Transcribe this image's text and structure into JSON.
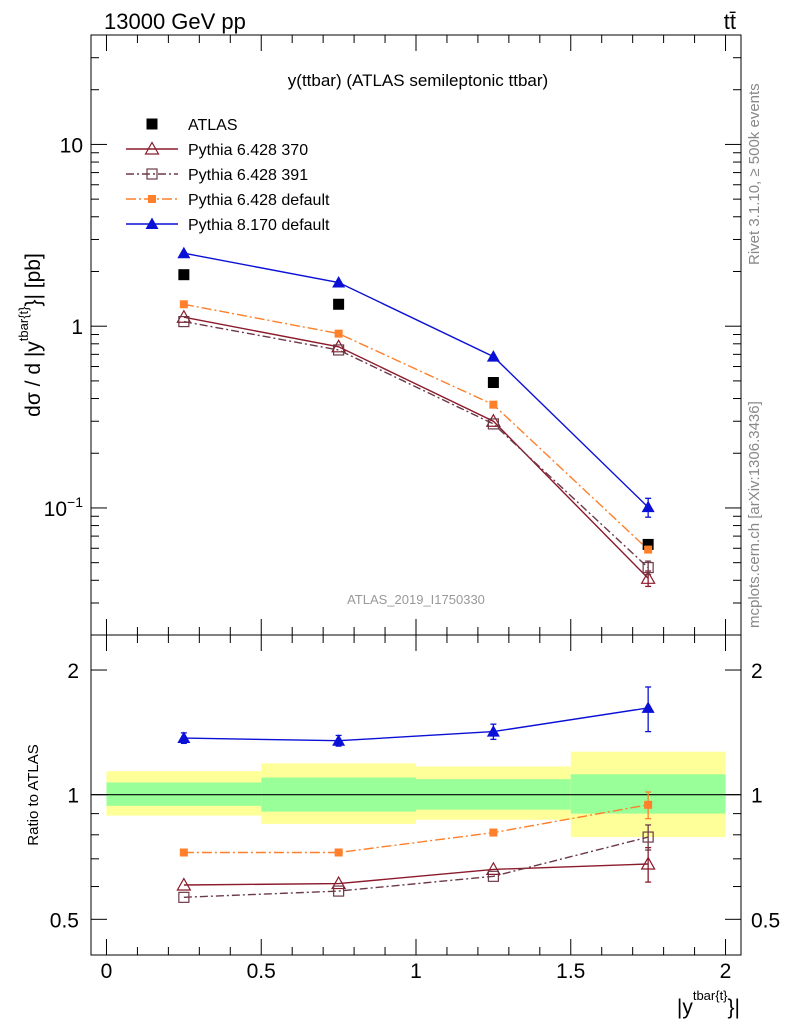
{
  "header": {
    "left": "13000 GeV pp",
    "right": "tt̄"
  },
  "side_labels": {
    "rivet": "Rivet 3.1.10, ≥ 500k events",
    "mcplots": "mcplots.cern.ch [arXiv:1306.3436]"
  },
  "chart_data": [
    {
      "type": "scatter",
      "panel": "main",
      "title": "y(ttbar) (ATLAS semileptonic ttbar)",
      "watermark": "ATLAS_2019_I1750330",
      "ylabel_parts": [
        "dσ / d |y",
        "tbar{t}",
        "}| [pb]"
      ],
      "yscale": "log",
      "ylim": [
        0.02,
        40
      ],
      "xlim": [
        -0.05,
        2.05
      ],
      "ytick_labels": {
        "big": [
          "10",
          "1"
        ],
        "exponent_tick": {
          "base": "10",
          "exp": "−1"
        }
      },
      "legend_position": "top-left",
      "x": [
        0.25,
        0.75,
        1.25,
        1.75
      ],
      "series": [
        {
          "name": "ATLAS",
          "color": "#000000",
          "marker": "square",
          "line": "none",
          "values": [
            1.92,
            1.32,
            0.49,
            0.063
          ]
        },
        {
          "name": "Pythia 6.428 370",
          "color": "#8b1a2b",
          "marker": "open-triangle",
          "line": "solid",
          "values": [
            1.12,
            0.77,
            0.3,
            0.041
          ],
          "err_low": [
            0.0,
            0.0,
            0.0,
            0.004
          ],
          "err_high": [
            0.0,
            0.0,
            0.0,
            0.004
          ]
        },
        {
          "name": "Pythia 6.428 391",
          "color": "#6b3a48",
          "marker": "open-square",
          "line": "dashdot",
          "values": [
            1.06,
            0.74,
            0.29,
            0.047
          ],
          "err_low": [
            0.0,
            0.0,
            0.0,
            0.004
          ],
          "err_high": [
            0.0,
            0.0,
            0.0,
            0.004
          ]
        },
        {
          "name": "Pythia 6.428 default",
          "color": "#ff7f2a",
          "marker": "small-square",
          "line": "dashdot2",
          "values": [
            1.32,
            0.91,
            0.37,
            0.059
          ]
        },
        {
          "name": "Pythia 8.170 default",
          "color": "#0a10d6",
          "marker": "filled-triangle",
          "line": "solid",
          "values": [
            2.52,
            1.74,
            0.68,
            0.101
          ],
          "err_low": [
            0.0,
            0.0,
            0.0,
            0.012
          ],
          "err_high": [
            0.0,
            0.0,
            0.0,
            0.012
          ]
        }
      ]
    },
    {
      "type": "scatter",
      "panel": "ratio",
      "ylabel": "Ratio to ATLAS",
      "xlabel_parts": [
        "|y",
        "tbar{t}",
        "}|"
      ],
      "yscale": "log",
      "ylim": [
        0.41,
        2.43
      ],
      "xlim": [
        -0.05,
        2.05
      ],
      "x_tick_labels": [
        "0",
        "0.5",
        "1",
        "1.5",
        "2"
      ],
      "y_tick_labels": [
        "2",
        "1",
        "0.5"
      ],
      "x": [
        0.25,
        0.75,
        1.25,
        1.75
      ],
      "bands": {
        "bin_edges": [
          0.0,
          0.5,
          1.0,
          1.5,
          2.0
        ],
        "green": {
          "color": "#99ff99",
          "low": [
            0.94,
            0.91,
            0.92,
            0.9
          ],
          "high": [
            1.07,
            1.1,
            1.09,
            1.12
          ]
        },
        "yellow": {
          "color": "#ffff99",
          "low": [
            0.89,
            0.85,
            0.87,
            0.79
          ],
          "high": [
            1.14,
            1.19,
            1.17,
            1.27
          ]
        }
      },
      "series": [
        {
          "name": "Pythia 6.428 370",
          "color": "#8b1a2b",
          "marker": "open-triangle",
          "line": "solid",
          "values": [
            0.605,
            0.61,
            0.66,
            0.68
          ],
          "err_low": [
            0.0,
            0.0,
            0.0,
            0.065
          ],
          "err_high": [
            0.0,
            0.0,
            0.0,
            0.065
          ]
        },
        {
          "name": "Pythia 6.428 391",
          "color": "#6b3a48",
          "marker": "open-square",
          "line": "dashdot",
          "values": [
            0.565,
            0.585,
            0.635,
            0.79
          ],
          "err_low": [
            0.0,
            0.0,
            0.0,
            0.055
          ],
          "err_high": [
            0.0,
            0.0,
            0.0,
            0.055
          ]
        },
        {
          "name": "Pythia 6.428 default",
          "color": "#ff7f2a",
          "marker": "small-square",
          "line": "dashdot2",
          "values": [
            0.725,
            0.725,
            0.81,
            0.945
          ],
          "err_low": [
            0.0,
            0.0,
            0.0,
            0.07
          ],
          "err_high": [
            0.0,
            0.0,
            0.0,
            0.07
          ]
        },
        {
          "name": "Pythia 8.170 default",
          "color": "#0a10d6",
          "marker": "filled-triangle",
          "line": "solid",
          "values": [
            1.37,
            1.35,
            1.42,
            1.62
          ],
          "err_low": [
            0.04,
            0.04,
            0.06,
            0.2
          ],
          "err_high": [
            0.04,
            0.04,
            0.06,
            0.2
          ]
        }
      ]
    }
  ]
}
